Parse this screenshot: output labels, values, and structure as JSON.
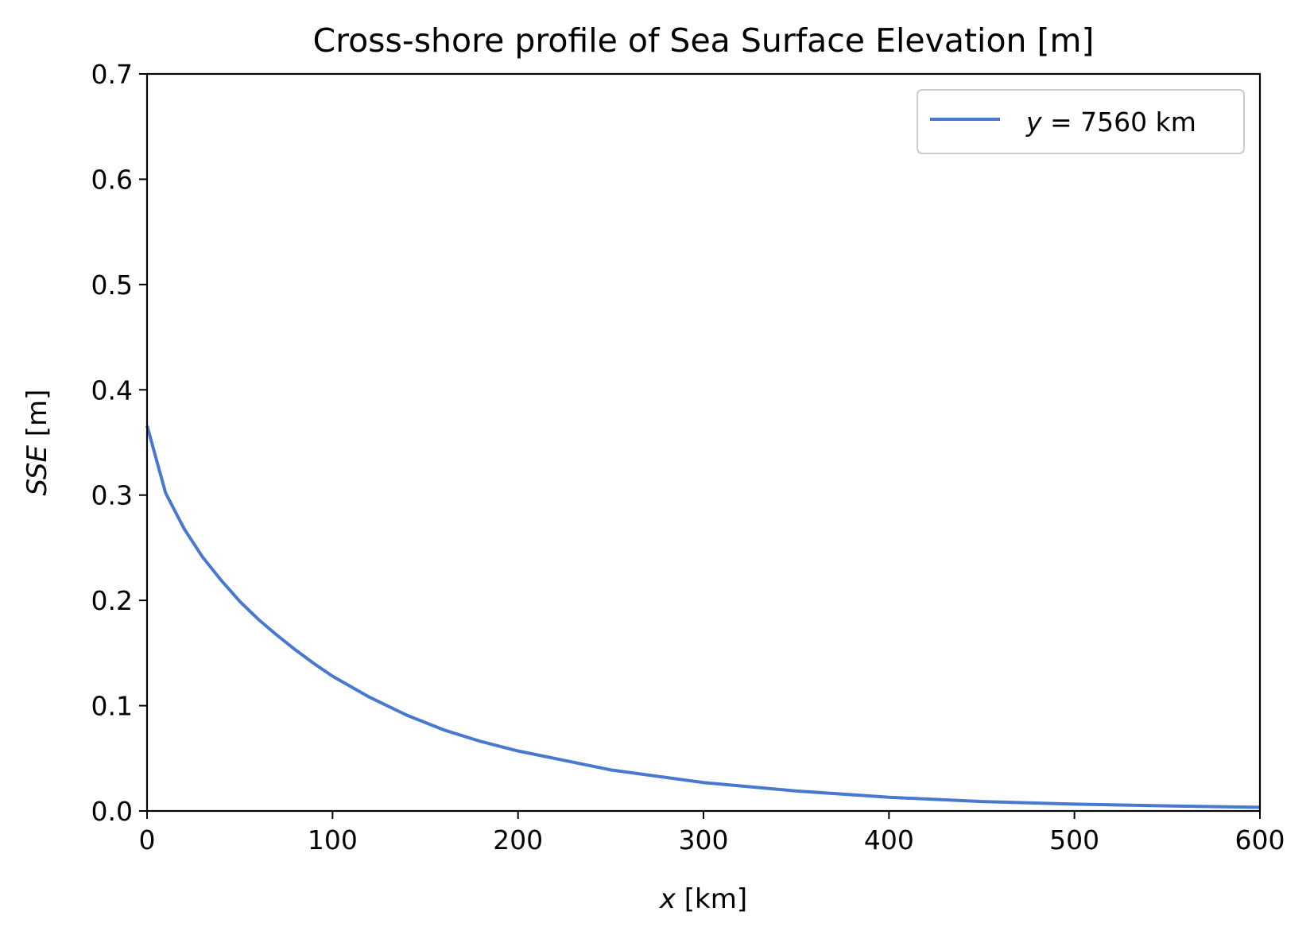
{
  "chart_data": {
    "type": "line",
    "title": "Cross-shore profile of Sea Surface Elevation [m]",
    "xlabel_var": "x",
    "xlabel_unit": " [km]",
    "ylabel_var": "SSE",
    "ylabel_unit": " [m]",
    "xlim": [
      0,
      600
    ],
    "ylim": [
      0,
      0.7
    ],
    "x_ticks": [
      "0",
      "100",
      "200",
      "300",
      "400",
      "500",
      "600"
    ],
    "y_ticks": [
      "0.0",
      "0.1",
      "0.2",
      "0.3",
      "0.4",
      "0.5",
      "0.6",
      "0.7"
    ],
    "grid": false,
    "legend_position": "top-right",
    "series": [
      {
        "legend_var": "y",
        "legend_rest": " = 7560 km",
        "color": "#4878cf",
        "x": [
          0,
          10,
          20,
          30,
          40,
          50,
          60,
          70,
          80,
          90,
          100,
          120,
          140,
          160,
          180,
          200,
          250,
          300,
          350,
          400,
          450,
          500,
          550,
          600
        ],
        "y": [
          0.366,
          0.302,
          0.268,
          0.241,
          0.219,
          0.199,
          0.182,
          0.167,
          0.153,
          0.14,
          0.128,
          0.108,
          0.091,
          0.077,
          0.066,
          0.057,
          0.039,
          0.027,
          0.019,
          0.013,
          0.009,
          0.0065,
          0.0048,
          0.0035
        ]
      }
    ]
  }
}
